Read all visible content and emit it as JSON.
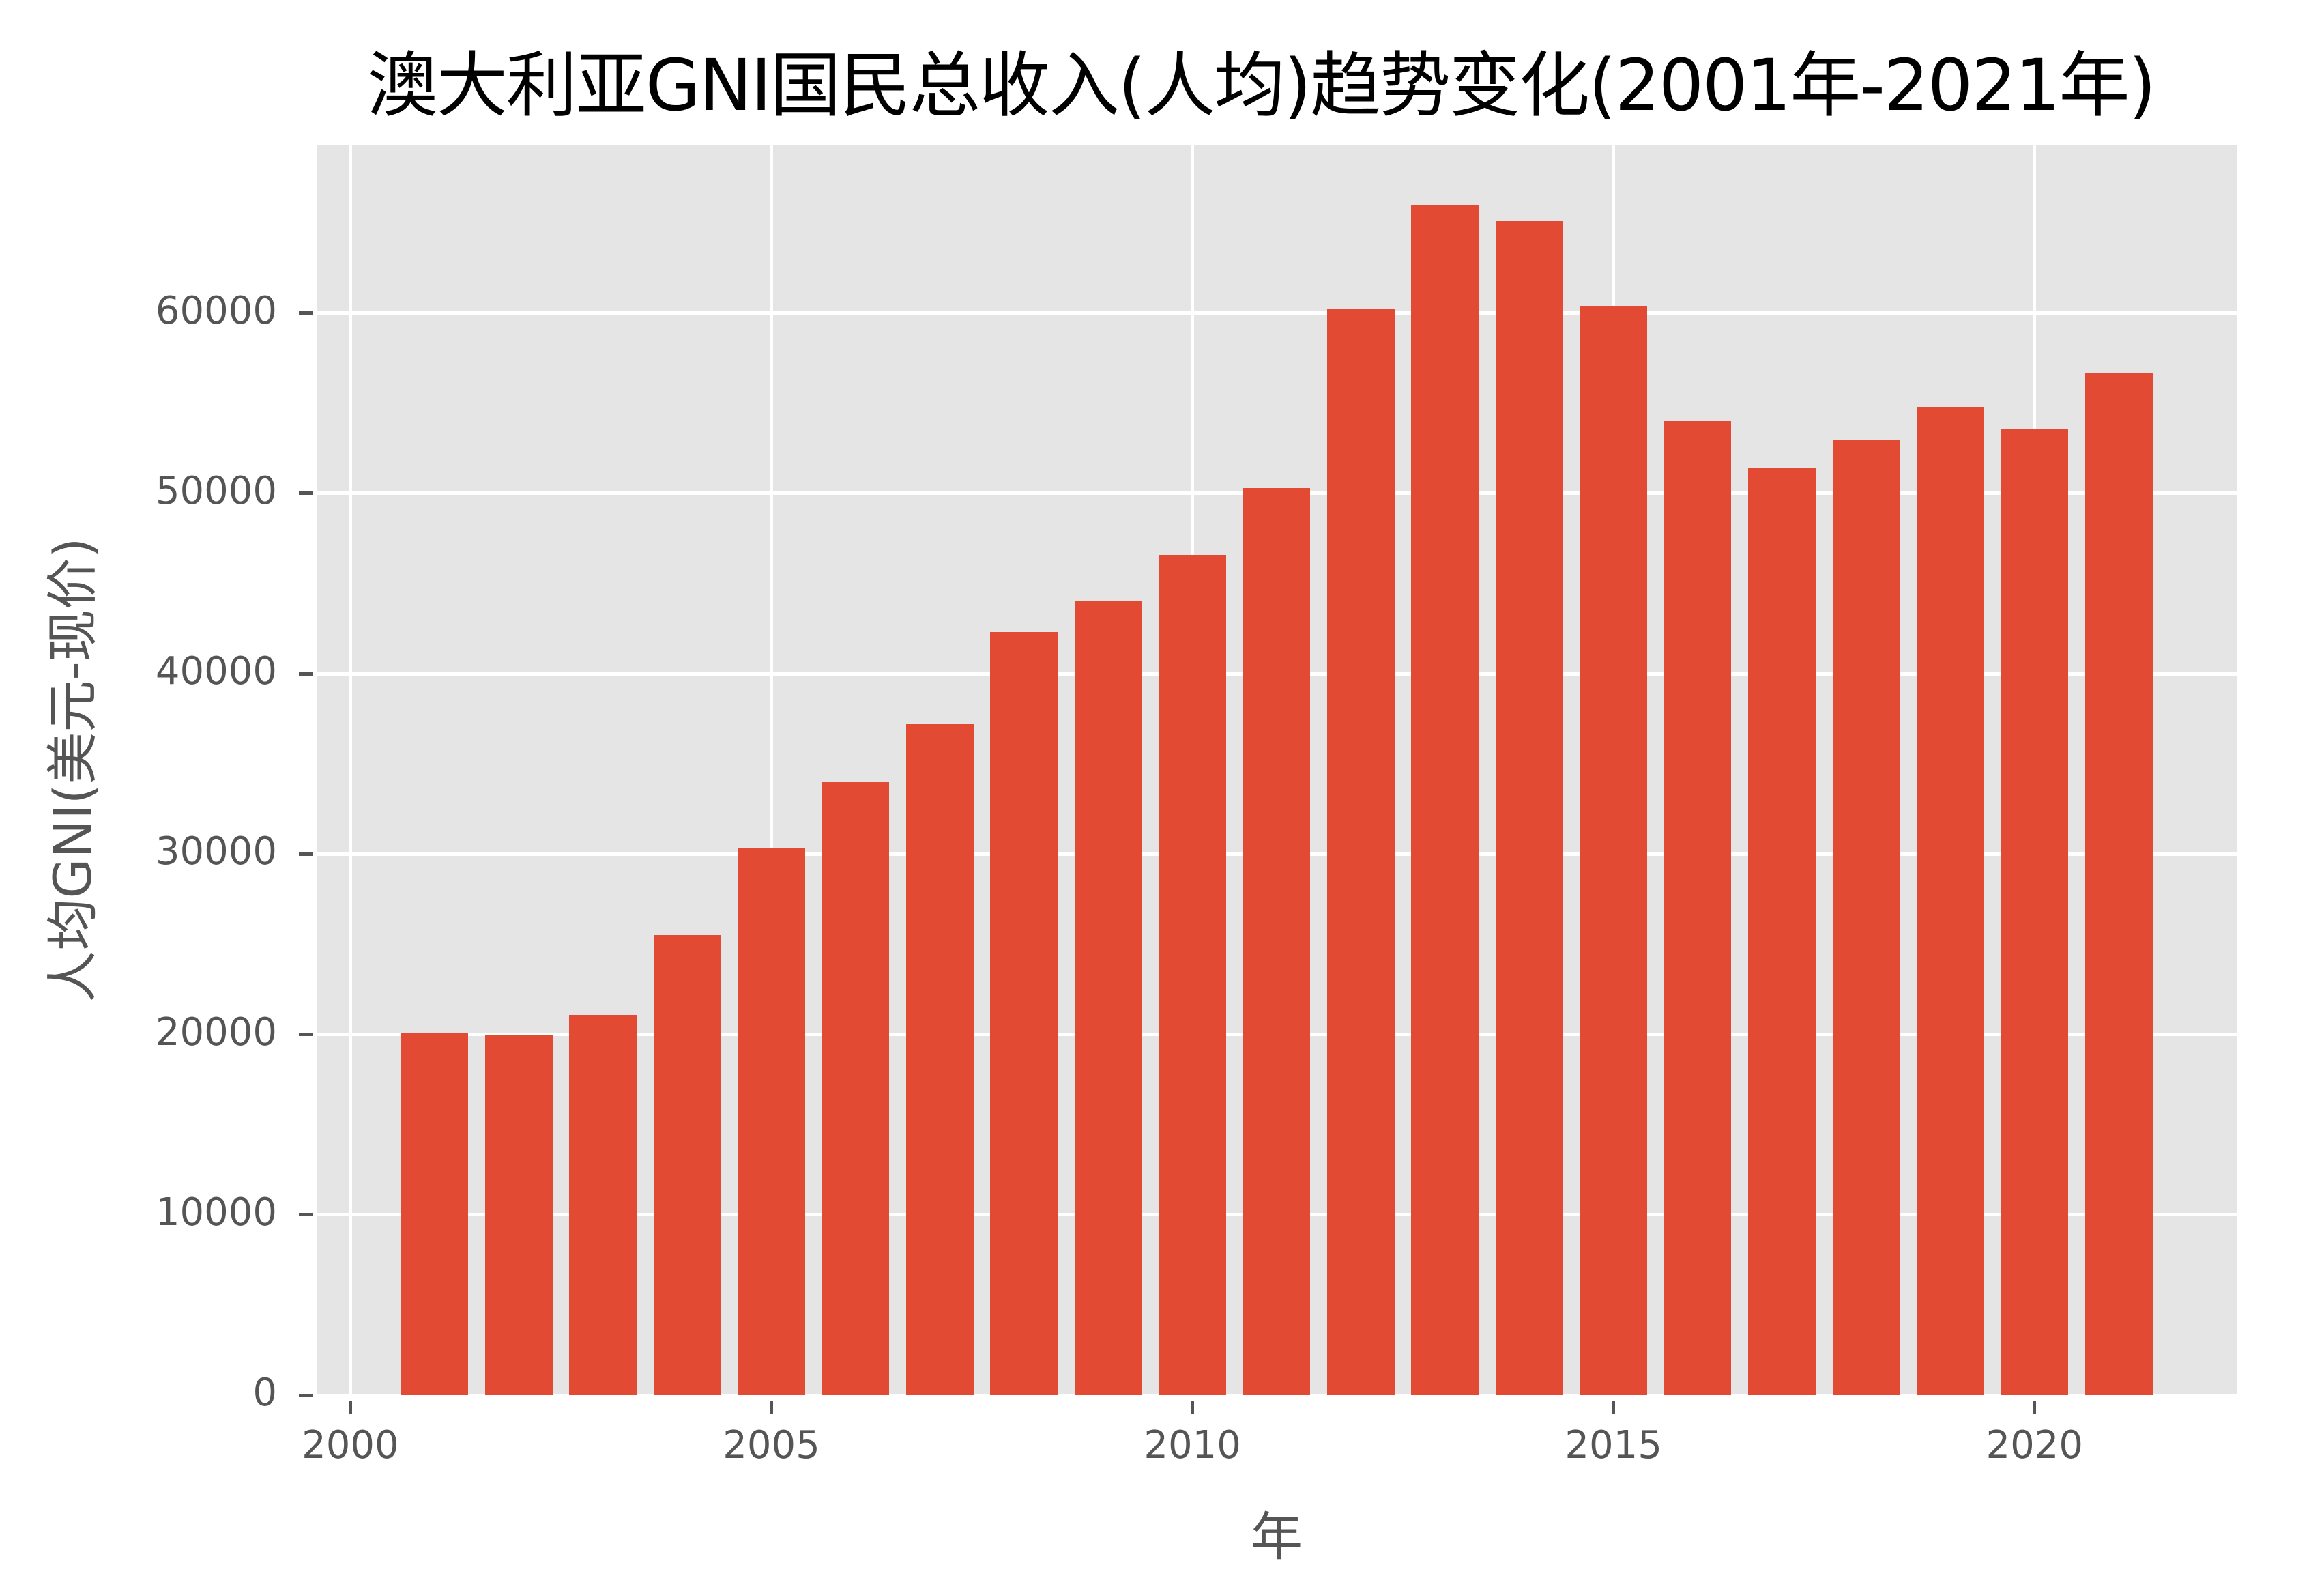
{
  "title": "澳大利亚GNI国民总收入(人均)趋势变化(2001年-2021年)",
  "colors": {
    "bar": "#e24a33",
    "plot_bg": "#e5e5e5",
    "grid": "#ffffff",
    "tick_text": "#555555"
  },
  "chart_data": {
    "type": "bar",
    "title": "澳大利亚GNI国民总收入(人均)趋势变化(2001年-2021年)",
    "xlabel": "年",
    "ylabel": "人均GNI(美元-现价)",
    "categories": [
      2001,
      2002,
      2003,
      2004,
      2005,
      2006,
      2007,
      2008,
      2009,
      2010,
      2011,
      2012,
      2013,
      2014,
      2015,
      2016,
      2017,
      2018,
      2019,
      2020,
      2021
    ],
    "values": [
      20100,
      20000,
      21100,
      25500,
      30300,
      34000,
      37200,
      42300,
      44000,
      46600,
      50300,
      60200,
      66000,
      65100,
      60400,
      54000,
      51400,
      53000,
      54800,
      53600,
      56700
    ],
    "xlim": [
      1999.6,
      2022.4
    ],
    "ylim": [
      0,
      69300
    ],
    "xticks": [
      "2000",
      "2005",
      "2010",
      "2015",
      "2020"
    ],
    "yticks": [
      "0",
      "10000",
      "20000",
      "30000",
      "40000",
      "50000",
      "60000"
    ],
    "grid": true,
    "legend": null
  }
}
